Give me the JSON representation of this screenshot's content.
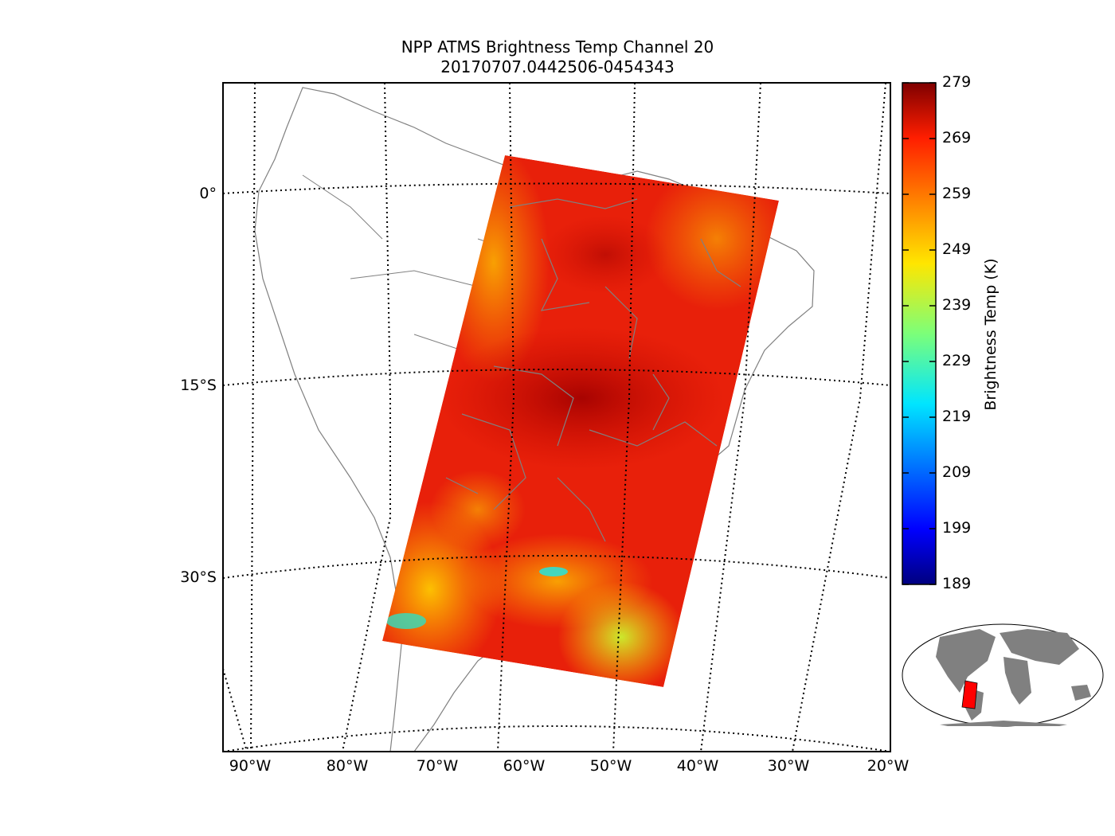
{
  "title": {
    "line1": "NPP ATMS Brightness Temp Channel 20",
    "line2": "20170707.0442506-0454343"
  },
  "map": {
    "region": "South America",
    "lat_labels": [
      "0°",
      "15°S",
      "30°S"
    ],
    "lon_labels": [
      "90°W",
      "80°W",
      "70°W",
      "60°W",
      "50°W",
      "40°W",
      "30°W",
      "20°W"
    ],
    "coastline_color": "#808080",
    "gridline_style": "dotted"
  },
  "colorbar": {
    "label": "Brightness Temp (K)",
    "ticks": [
      "279",
      "269",
      "259",
      "249",
      "239",
      "229",
      "219",
      "209",
      "199",
      "189"
    ],
    "min": 189,
    "max": 279,
    "colormap": "jet"
  },
  "swath": {
    "dominant_color": "#e8200a",
    "min_observed": 229,
    "max_observed": 279
  },
  "inset": {
    "description_tags": [
      "world-map-icon"
    ],
    "land_color": "#808080",
    "swath_color": "#ff0000"
  }
}
